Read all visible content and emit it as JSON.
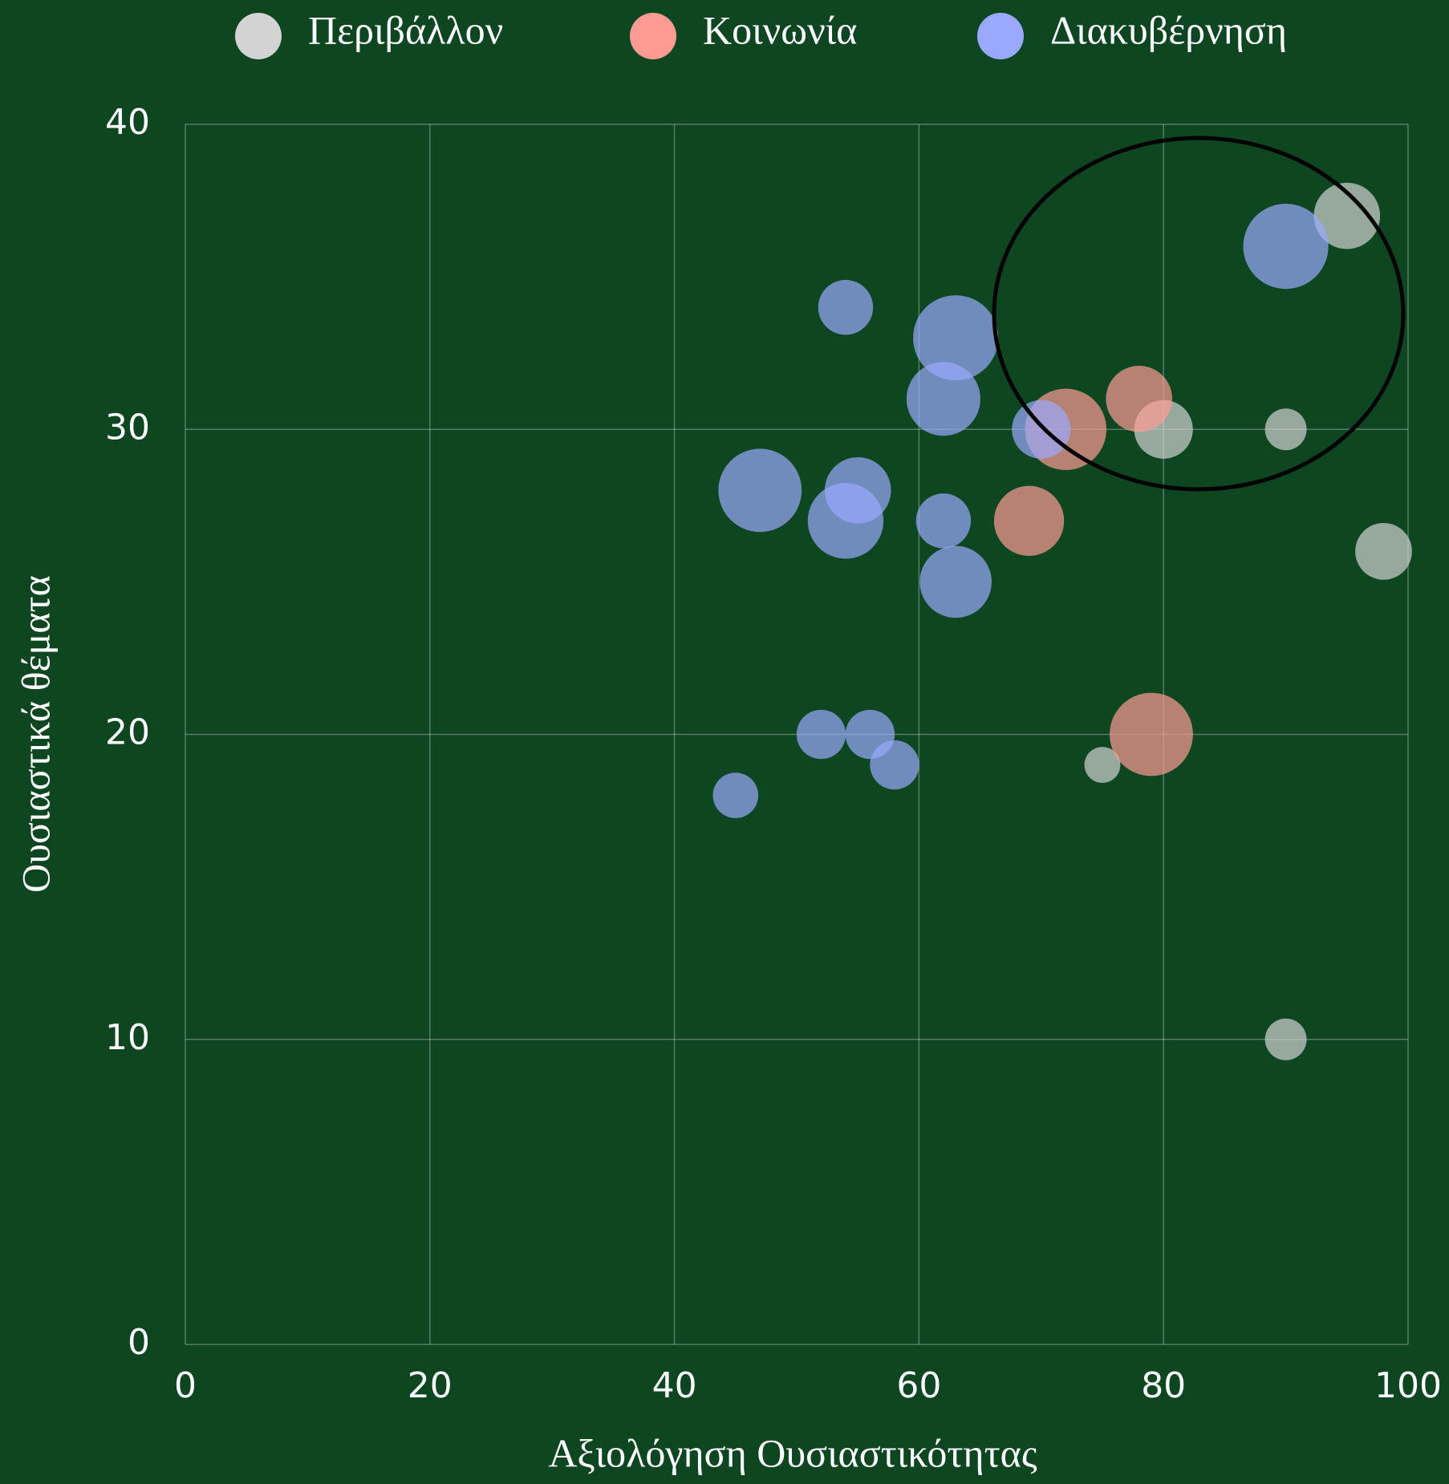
{
  "chart_data": {
    "type": "bubble",
    "xlabel": "Αξιολόγηση Ουσιαστικότητας",
    "ylabel": "Ουσιαστικά θέματα",
    "xlim": [
      0,
      100
    ],
    "xticks": [
      0,
      20,
      40,
      60,
      80,
      100
    ],
    "ylim": [
      0,
      40
    ],
    "yticks": [
      0,
      10,
      20,
      30,
      40
    ],
    "grid": true,
    "legend": "top",
    "series": [
      {
        "name": "Περιβάλλον",
        "color": "#d3d3d3",
        "x": [
          95,
          80,
          90,
          98,
          75,
          90
        ],
        "values": [
          37,
          30,
          30,
          26,
          19,
          10
        ],
        "sizes": [
          35,
          31,
          22,
          30,
          19,
          22
        ]
      },
      {
        "name": "Κοινωνία",
        "color": "#ff9b94",
        "x": [
          72,
          78,
          69,
          79
        ],
        "values": [
          30,
          31,
          27,
          20
        ],
        "sizes": [
          43,
          35,
          37,
          44
        ]
      },
      {
        "name": "Διακυβέρνηση",
        "color": "#9aa9ff",
        "x": [
          90,
          54,
          63,
          62,
          70,
          47,
          55,
          54,
          62,
          63,
          52,
          56,
          58,
          45
        ],
        "values": [
          36,
          34,
          33,
          31,
          30,
          28,
          28,
          27,
          27,
          25,
          20,
          20,
          19,
          18
        ],
        "sizes": [
          45,
          29,
          45,
          39,
          31,
          44,
          35,
          40,
          29,
          38,
          26,
          26,
          26,
          24
        ]
      }
    ]
  }
}
